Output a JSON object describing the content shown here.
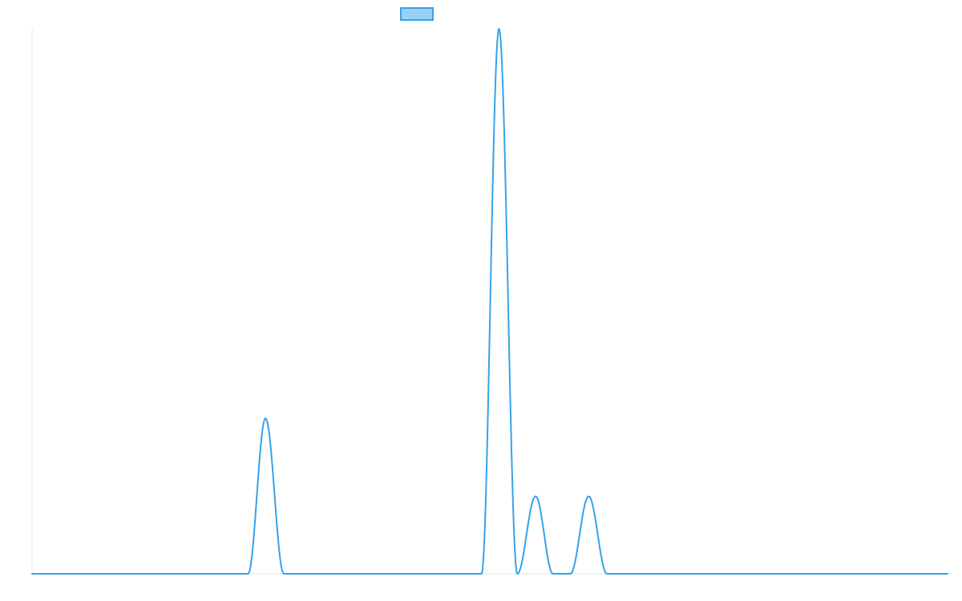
{
  "chart_data": {
    "type": "line",
    "title": "",
    "xlabel": "",
    "ylabel": "",
    "grid": false,
    "legend": {
      "position": "top-center",
      "entries": [
        {
          "name": "",
          "color": "#36a2eb",
          "fill": "#9ad0f5"
        }
      ]
    },
    "xlim": [
      0,
      100
    ],
    "ylim": [
      0,
      100
    ],
    "series": [
      {
        "name": "",
        "color": "#36a2eb",
        "peaks": [
          {
            "start": 23.6,
            "center": 25.5,
            "end": 27.5,
            "height": 28.5
          },
          {
            "start": 49.1,
            "center": 51.0,
            "end": 53.0,
            "height": 100
          },
          {
            "start": 53.0,
            "center": 55.0,
            "end": 56.9,
            "height": 14.2
          },
          {
            "start": 58.8,
            "center": 60.8,
            "end": 62.8,
            "height": 14.2
          }
        ]
      }
    ]
  }
}
